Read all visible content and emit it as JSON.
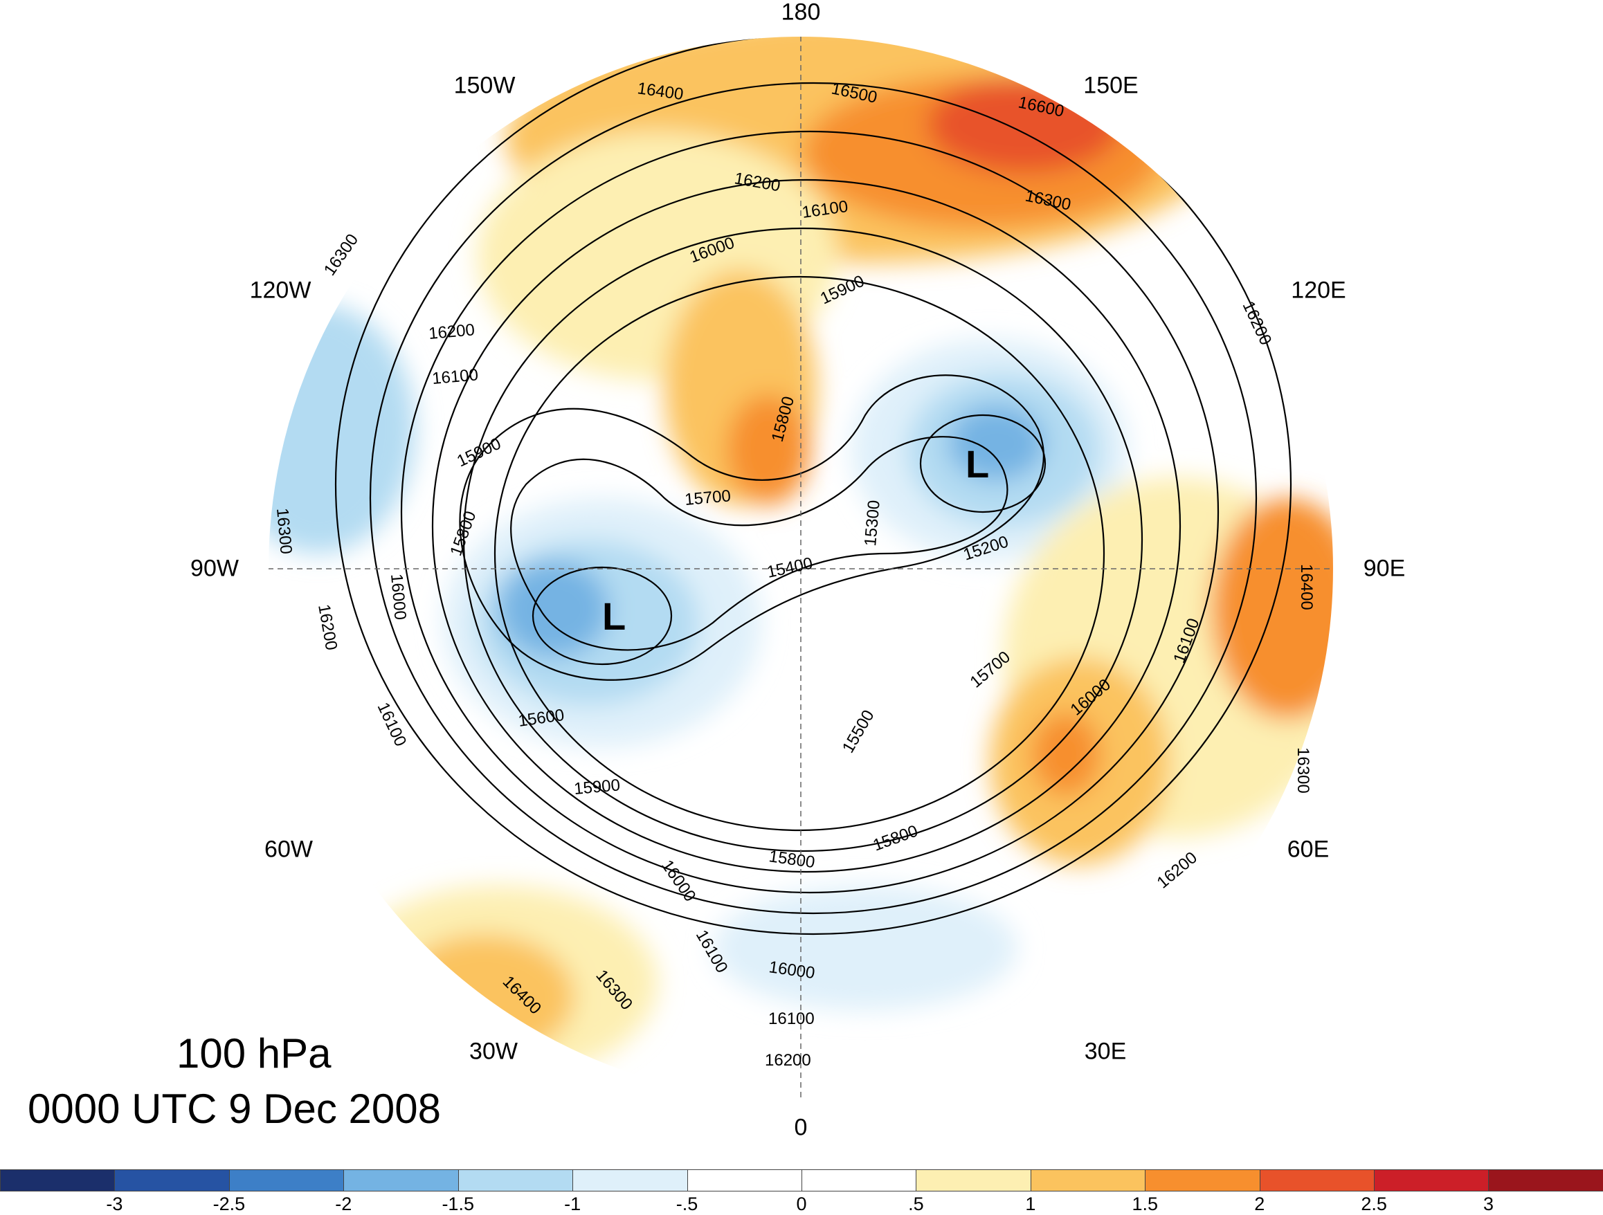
{
  "title": {
    "level": "100 hPa",
    "time": "0000 UTC 9 Dec 2008"
  },
  "longitude_labels": [
    "180",
    "150E",
    "120E",
    "90E",
    "60E",
    "30E",
    "0",
    "30W",
    "60W",
    "90W",
    "120W",
    "150W"
  ],
  "lows": [
    {
      "symbol": "L",
      "lon": 115,
      "lat": 75
    },
    {
      "symbol": "L",
      "lon": -80,
      "lat": 65
    }
  ],
  "contour_labels": [
    "16400",
    "16500",
    "16600",
    "16300",
    "16200",
    "16100",
    "16000",
    "15900",
    "15800",
    "15700",
    "15400",
    "15300",
    "15200",
    "15500",
    "15600",
    "16300",
    "16200",
    "16100",
    "16000",
    "15900",
    "15800",
    "15900",
    "15800",
    "15700",
    "16000",
    "16100",
    "16200",
    "16300",
    "16400",
    "16300",
    "16200",
    "16100",
    "16000",
    "16200",
    "16300",
    "16400",
    "16100",
    "16000",
    "16100",
    "16200",
    "15800"
  ],
  "colorbar": {
    "colors": [
      "#1b2f6b",
      "#2653a3",
      "#3d7fc7",
      "#74b3e3",
      "#b3dbf2",
      "#dff0fa",
      "#ffffff",
      "#ffffff",
      "#fdefb2",
      "#fbc35e",
      "#f78f2e",
      "#e8522a",
      "#cc1f28",
      "#9a151c"
    ],
    "ticks": [
      "-3",
      "-2.5",
      "-2",
      "-1.5",
      "-1",
      "-.5",
      "0",
      ".5",
      "1",
      "1.5",
      "2",
      "2.5",
      "3"
    ]
  }
}
